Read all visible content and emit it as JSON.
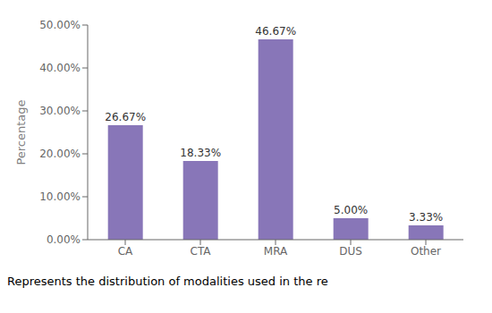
{
  "chart_data": {
    "type": "bar",
    "categories": [
      "CA",
      "CTA",
      "MRA",
      "DUS",
      "Other"
    ],
    "values": [
      26.67,
      18.33,
      46.67,
      5.0,
      3.33
    ],
    "value_labels": [
      "26.67%",
      "18.33%",
      "46.67%",
      "5.00%",
      "3.33%"
    ],
    "data_labels": true,
    "color": "#8876b8",
    "ylabel": "Percentage",
    "ylim": [
      0,
      50
    ],
    "yticks": [
      {
        "value": 0,
        "label": "0.00%"
      },
      {
        "value": 10,
        "label": "10.00%"
      },
      {
        "value": 20,
        "label": "20.00%"
      },
      {
        "value": 30,
        "label": "30.00%"
      },
      {
        "value": 40,
        "label": "40.00%"
      },
      {
        "value": 50,
        "label": "50.00%"
      }
    ],
    "grid": false,
    "annotations": [
      "Represents the distribution of modalities used in the re"
    ]
  }
}
